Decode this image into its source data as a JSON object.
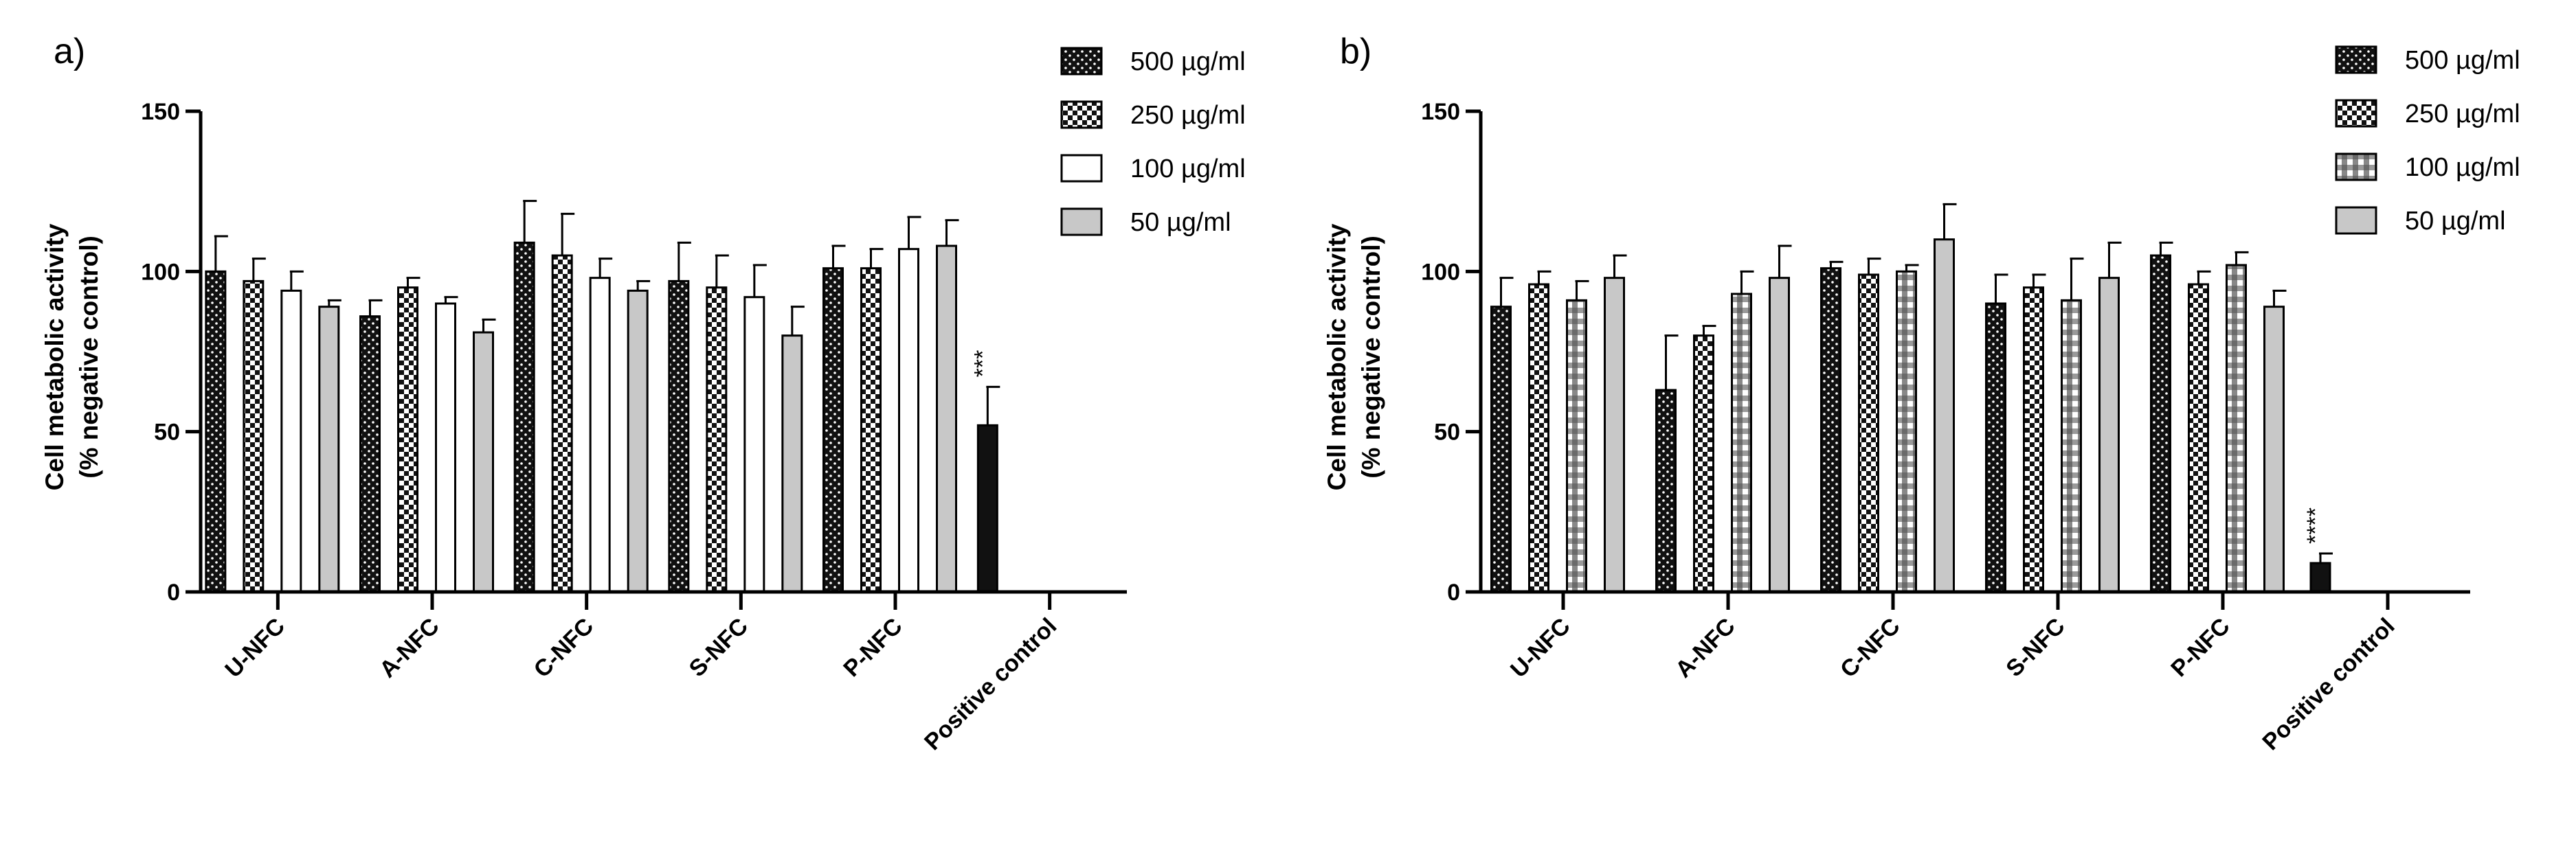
{
  "chart_data": [
    {
      "panel_label": "a)",
      "type": "bar",
      "ylabel_line1": "Cell metabolic activity",
      "ylabel_line2": "(% negative control)",
      "ylim": [
        0,
        150
      ],
      "yticks": [
        "0",
        "50",
        "100",
        "150"
      ],
      "categories": [
        "U-NFC",
        "A-NFC",
        "C-NFC",
        "S-NFC",
        "P-NFC",
        "Positive control"
      ],
      "series": [
        {
          "name": "500 µg/ml",
          "pattern": "dots",
          "values": [
            100,
            86,
            109,
            97,
            101,
            null
          ],
          "errors": [
            11,
            5,
            13,
            12,
            7,
            null
          ]
        },
        {
          "name": "250 µg/ml",
          "pattern": "checker",
          "values": [
            97,
            95,
            105,
            95,
            101,
            null
          ],
          "errors": [
            7,
            3,
            13,
            10,
            6,
            null
          ]
        },
        {
          "name": "100 µg/ml",
          "pattern": "white",
          "values": [
            94,
            90,
            98,
            92,
            107,
            null
          ],
          "errors": [
            6,
            2,
            6,
            10,
            10,
            null
          ]
        },
        {
          "name": "50 µg/ml",
          "pattern": "gray",
          "values": [
            89,
            81,
            94,
            80,
            108,
            null
          ],
          "errors": [
            2,
            4,
            3,
            9,
            8,
            null
          ]
        }
      ],
      "positive_control": {
        "value": 52,
        "error": 12,
        "significance": "***"
      }
    },
    {
      "panel_label": "b)",
      "type": "bar",
      "ylabel_line1": "Cell metabolic activity",
      "ylabel_line2": "(% negative control)",
      "ylim": [
        0,
        150
      ],
      "yticks": [
        "0",
        "50",
        "100",
        "150"
      ],
      "categories": [
        "U-NFC",
        "A-NFC",
        "C-NFC",
        "S-NFC",
        "P-NFC",
        "Positive control"
      ],
      "series": [
        {
          "name": "500 µg/ml",
          "pattern": "dots",
          "values": [
            89,
            63,
            101,
            90,
            105,
            null
          ],
          "errors": [
            9,
            17,
            2,
            9,
            4,
            null
          ]
        },
        {
          "name": "250 µg/ml",
          "pattern": "checker",
          "values": [
            96,
            80,
            99,
            95,
            96,
            null
          ],
          "errors": [
            4,
            3,
            5,
            4,
            4,
            null
          ]
        },
        {
          "name": "100 µg/ml",
          "pattern": "grid",
          "values": [
            91,
            93,
            100,
            91,
            102,
            null
          ],
          "errors": [
            6,
            7,
            2,
            13,
            4,
            null
          ]
        },
        {
          "name": "50 µg/ml",
          "pattern": "gray",
          "values": [
            98,
            98,
            110,
            98,
            89,
            null
          ],
          "errors": [
            7,
            10,
            11,
            11,
            5,
            null
          ]
        }
      ],
      "positive_control": {
        "value": 9,
        "error": 3,
        "significance": "****"
      }
    }
  ],
  "colors": {
    "bar_stroke": "#000000",
    "dark_fill": "#111111",
    "gray_fill": "#c8c8c8",
    "white_fill": "#ffffff"
  }
}
